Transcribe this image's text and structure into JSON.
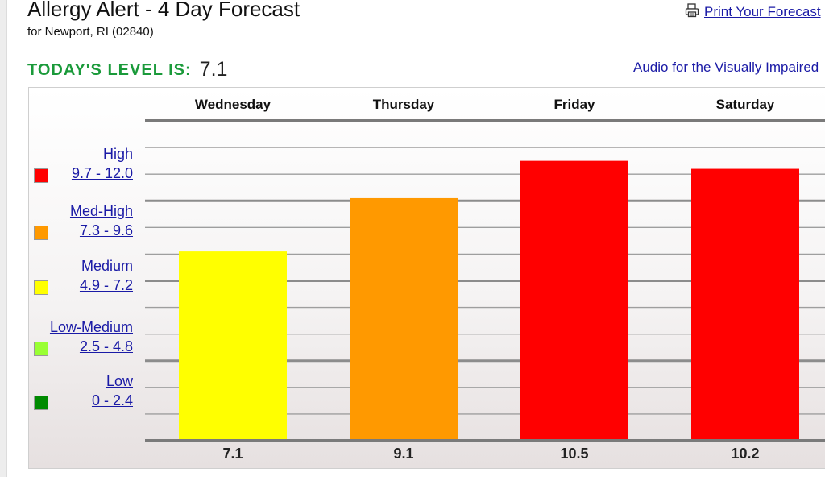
{
  "header": {
    "title": "Allergy Alert - 4 Day Forecast",
    "subtitle": "for  Newport, RI (02840)",
    "print_link": "Print Your Forecast",
    "today_label": "TODAY'S LEVEL IS:",
    "today_value": "7.1",
    "audio_link": "Audio for the Visually Impaired"
  },
  "legend": [
    {
      "name": "High",
      "range": "9.7 - 12.0",
      "color": "#ff0000"
    },
    {
      "name": "Med-High",
      "range": "7.3 - 9.6",
      "color": "#ff9900"
    },
    {
      "name": "Medium",
      "range": "4.9 - 7.2",
      "color": "#ffff00"
    },
    {
      "name": "Low-Medium",
      "range": "2.5 - 4.8",
      "color": "#99ff33"
    },
    {
      "name": "Low",
      "range": "0 - 2.4",
      "color": "#008a00"
    }
  ],
  "chart_data": {
    "type": "bar",
    "categories": [
      "Wednesday",
      "Thursday",
      "Friday",
      "Saturday"
    ],
    "values": [
      7.1,
      9.1,
      10.5,
      10.2
    ],
    "value_labels": [
      "7.1",
      "9.1",
      "10.5",
      "10.2"
    ],
    "colors": [
      "#ffff00",
      "#ff9900",
      "#ff0000",
      "#ff0000"
    ],
    "ylim": [
      0,
      12
    ],
    "grid": true,
    "legend_placement": "left"
  }
}
